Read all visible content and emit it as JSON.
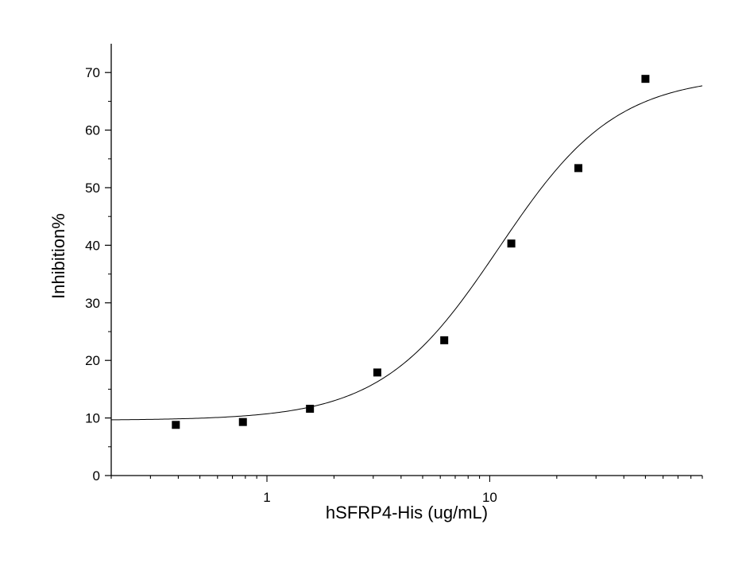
{
  "chart_data": {
    "type": "scatter",
    "title": "",
    "xlabel": "hSFRP4-His (ug/mL)",
    "ylabel": "Inhibition%",
    "x_scale": "log",
    "xlim": [
      0.2,
      90
    ],
    "ylim": [
      0,
      75
    ],
    "x_major_ticks": [
      1,
      10
    ],
    "x_tick_labels": [
      "1",
      "10"
    ],
    "y_ticks": [
      0,
      10,
      20,
      30,
      40,
      50,
      60,
      70
    ],
    "y_tick_labels": [
      "0",
      "10",
      "20",
      "30",
      "40",
      "50",
      "60",
      "70"
    ],
    "grid": false,
    "legend": "none",
    "colors": {
      "points": "#000000",
      "curve": "#000000",
      "axes": "#000000"
    },
    "series": [
      {
        "x": [
          0.39,
          0.78,
          1.56,
          3.13,
          6.25,
          12.5,
          25,
          50
        ],
        "y": [
          8.8,
          9.3,
          11.6,
          17.9,
          23.5,
          40.3,
          53.4,
          68.9
        ]
      }
    ],
    "fit_curve": {
      "model": "4PL",
      "bottom": 9.6,
      "top": 69.5,
      "ec50": 11,
      "hill": 1.65
    }
  }
}
